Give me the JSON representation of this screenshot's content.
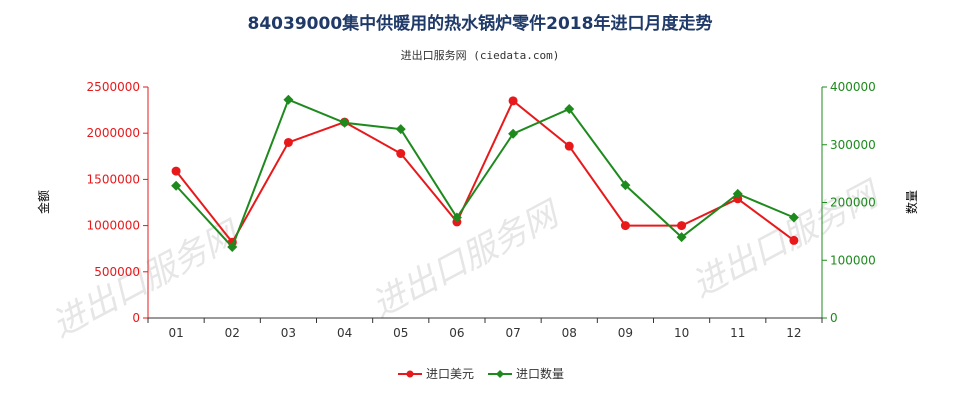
{
  "chart_data": {
    "type": "line",
    "title": "84039000集中供暖用的热水锅炉零件2018年进口月度走势",
    "subtitle": "进出口服务网 (ciedata.com)",
    "categories": [
      "01",
      "02",
      "03",
      "04",
      "05",
      "06",
      "07",
      "08",
      "09",
      "10",
      "11",
      "12"
    ],
    "y_left": {
      "label": "金额",
      "ylim": [
        0,
        2500000
      ],
      "ticks": [
        0,
        500000,
        1000000,
        1500000,
        2000000,
        2500000
      ],
      "tick_labels": [
        "0",
        "500000",
        "1000000",
        "1500000",
        "2000000",
        "2500000"
      ],
      "color": "#e8191b"
    },
    "y_right": {
      "label": "数量",
      "ylim": [
        0,
        400000
      ],
      "ticks": [
        0,
        100000,
        200000,
        300000,
        400000
      ],
      "tick_labels": [
        "0",
        "100000",
        "200000",
        "300000",
        "400000"
      ],
      "color": "#1e8a1e"
    },
    "series": [
      {
        "name": "进口美元",
        "axis": "left",
        "color": "#e8191b",
        "marker": "circle",
        "values": [
          1590000,
          820000,
          1900000,
          2120000,
          1780000,
          1040000,
          2350000,
          1860000,
          1000000,
          1000000,
          1290000,
          840000
        ]
      },
      {
        "name": "进口数量",
        "axis": "right",
        "color": "#1e8a1e",
        "marker": "diamond",
        "values": [
          229000,
          123000,
          378000,
          338000,
          327000,
          174000,
          319000,
          362000,
          230000,
          140000,
          215000,
          174000
        ]
      }
    ],
    "grid": false,
    "legend_position": "bottom-center"
  },
  "watermarks": [
    "进出口服务网",
    "进出口服务网",
    "进出口服务网"
  ]
}
